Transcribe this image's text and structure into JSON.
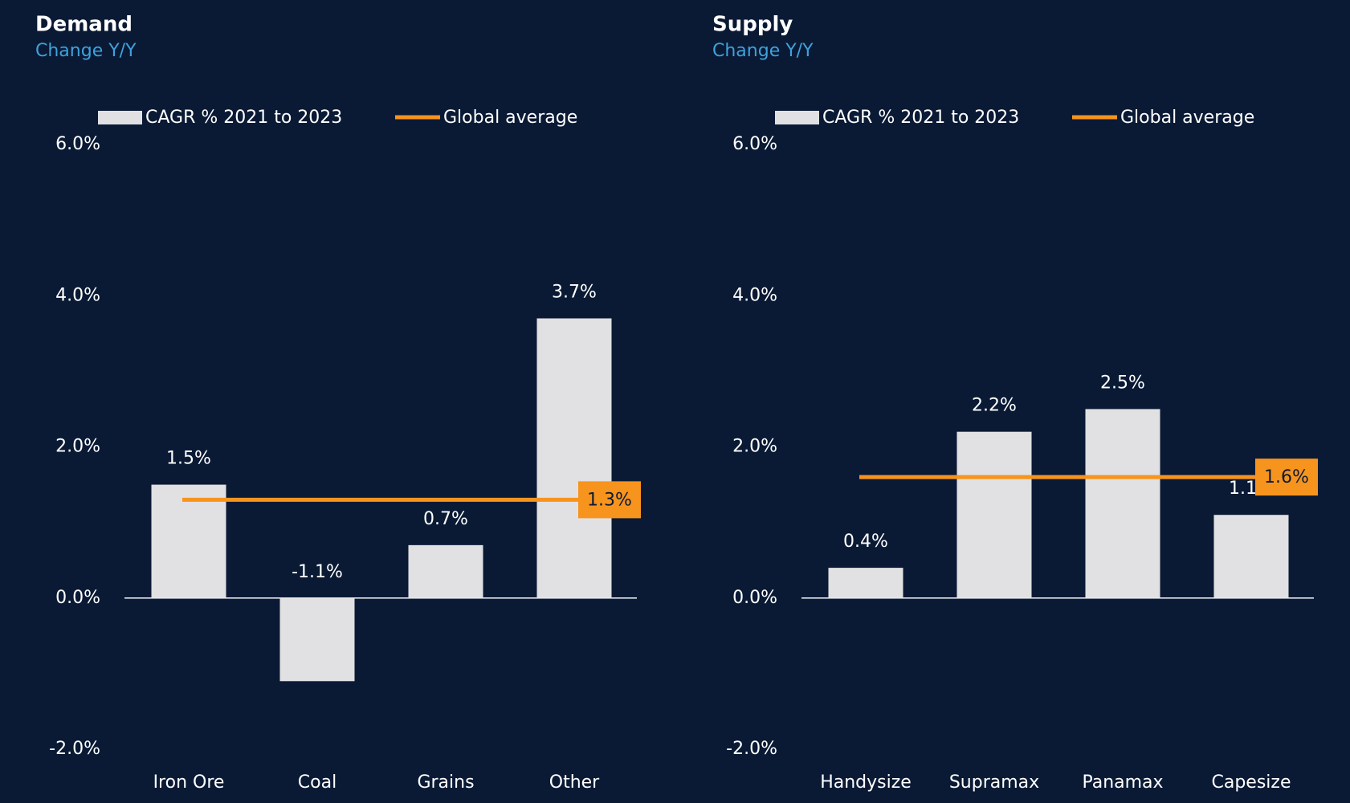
{
  "chart_data": [
    {
      "type": "bar",
      "title": "Demand",
      "subtitle": "Change Y/Y",
      "categories": [
        "Iron Ore",
        "Coal",
        "Grains",
        "Other"
      ],
      "series": [
        {
          "name": "CAGR % 2021 to 2023",
          "color": "#e1e1e3",
          "values": [
            1.5,
            -1.1,
            0.7,
            3.7
          ],
          "value_labels": [
            "1.5%",
            "-1.1%",
            "0.7%",
            "3.7%"
          ]
        }
      ],
      "average": {
        "name": "Global average",
        "color": "#f7941d",
        "value": 1.3,
        "value_label": "1.3%"
      },
      "ylim": [
        -2,
        6
      ],
      "yticks": [
        {
          "value": -2,
          "label": "-2.0%"
        },
        {
          "value": 0,
          "label": "0.0%"
        },
        {
          "value": 2,
          "label": "2.0%"
        },
        {
          "value": 4,
          "label": "4.0%"
        },
        {
          "value": 6,
          "label": "6.0%"
        }
      ]
    },
    {
      "type": "bar",
      "title": "Supply",
      "subtitle": "Change Y/Y",
      "categories": [
        "Handysize",
        "Supramax",
        "Panamax",
        "Capesize"
      ],
      "series": [
        {
          "name": "CAGR % 2021 to 2023",
          "color": "#e1e1e3",
          "values": [
            0.4,
            2.2,
            2.5,
            1.1
          ],
          "value_labels": [
            "0.4%",
            "2.2%",
            "2.5%",
            "1.1%"
          ]
        }
      ],
      "average": {
        "name": "Global average",
        "color": "#f7941d",
        "value": 1.6,
        "value_label": "1.6%"
      },
      "ylim": [
        -2,
        6
      ],
      "yticks": [
        {
          "value": -2,
          "label": "-2.0%"
        },
        {
          "value": 0,
          "label": "0.0%"
        },
        {
          "value": 2,
          "label": "2.0%"
        },
        {
          "value": 4,
          "label": "4.0%"
        },
        {
          "value": 6,
          "label": "6.0%"
        }
      ]
    }
  ]
}
